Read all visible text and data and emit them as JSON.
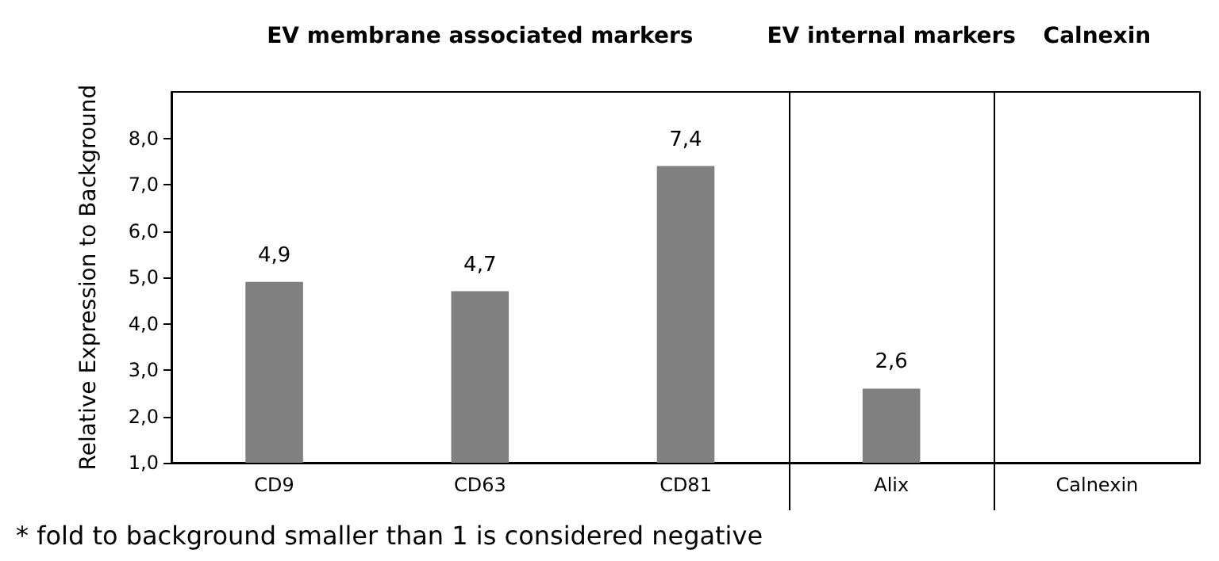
{
  "chart_data": {
    "type": "bar",
    "ylabel": "Relative Expression to Background",
    "categories": [
      "CD9",
      "CD63",
      "CD81",
      "Alix",
      "Calnexin"
    ],
    "values": [
      4.9,
      4.7,
      7.4,
      2.6,
      1.0
    ],
    "value_labels": [
      "4,9",
      "4,7",
      "7,4",
      "2,6",
      null
    ],
    "color": "#808080",
    "ylim": [
      1,
      9
    ],
    "yticks": [
      {
        "value": 1,
        "label": "1,0"
      },
      {
        "value": 2,
        "label": "2,0"
      },
      {
        "value": 3,
        "label": "3,0"
      },
      {
        "value": 4,
        "label": "4,0"
      },
      {
        "value": 5,
        "label": "5,0"
      },
      {
        "value": 6,
        "label": "6,0"
      },
      {
        "value": 7,
        "label": "7,0"
      },
      {
        "value": 8,
        "label": "8,0"
      }
    ],
    "annotations": [
      "EV membrane associated markers",
      "EV internal markers",
      "Calnexin",
      "* fold to background smaller than 1 is considered negative"
    ],
    "grid": false
  }
}
